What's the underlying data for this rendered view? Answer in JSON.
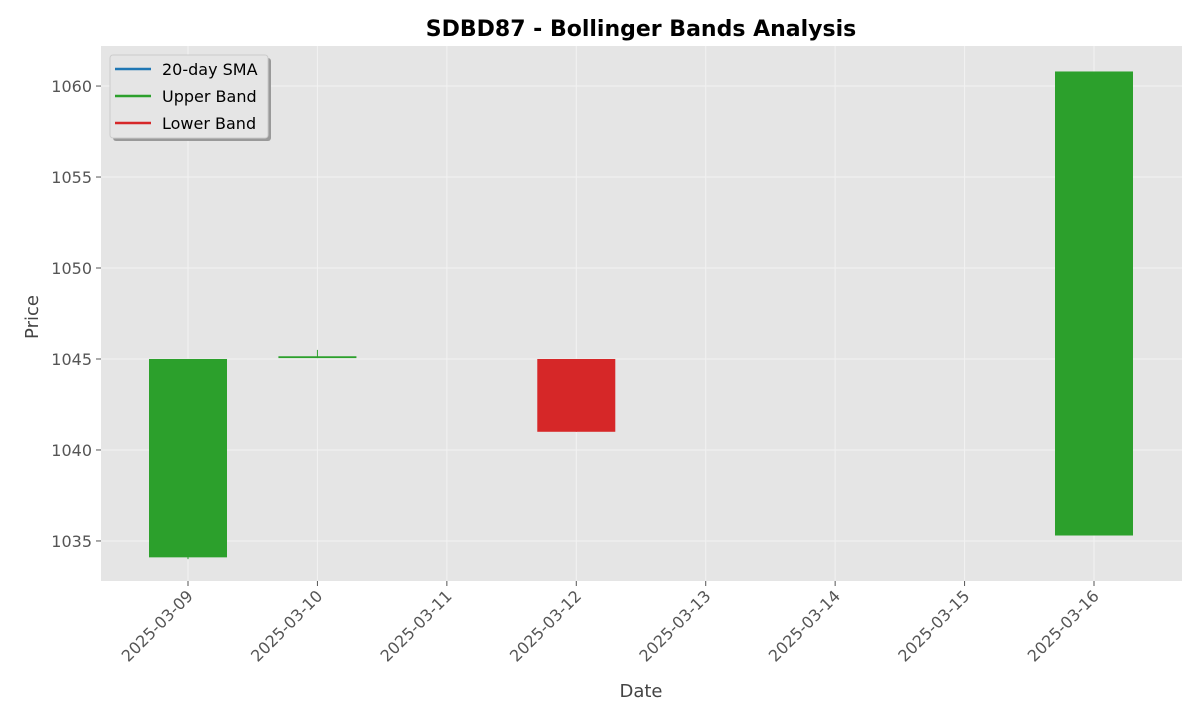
{
  "chart_data": {
    "type": "candlestick",
    "title": "SDBD87 - Bollinger Bands Analysis",
    "xlabel": "Date",
    "ylabel": "Price",
    "ylim": [
      1032.8,
      1062.2
    ],
    "yticks": [
      1035,
      1040,
      1045,
      1050,
      1055,
      1060
    ],
    "categories": [
      "2025-03-09",
      "2025-03-10",
      "2025-03-11",
      "2025-03-12",
      "2025-03-13",
      "2025-03-14",
      "2025-03-15",
      "2025-03-16"
    ],
    "candles": [
      {
        "date": "2025-03-09",
        "open": 1034.1,
        "close": 1045.0,
        "high": 1045.0,
        "low": 1034.0,
        "direction": "up"
      },
      {
        "date": "2025-03-10",
        "open": 1045.05,
        "close": 1045.15,
        "high": 1045.5,
        "low": 1045.05,
        "direction": "up"
      },
      {
        "date": "2025-03-12",
        "open": 1045.0,
        "close": 1041.0,
        "high": 1045.0,
        "low": 1041.0,
        "direction": "down"
      },
      {
        "date": "2025-03-16",
        "open": 1035.3,
        "close": 1060.8,
        "high": 1060.8,
        "low": 1035.3,
        "direction": "up"
      }
    ],
    "legend": [
      {
        "label": "20-day SMA",
        "color": "#1f77b4"
      },
      {
        "label": "Upper Band",
        "color": "#2ca02c"
      },
      {
        "label": "Lower Band",
        "color": "#d62728"
      }
    ],
    "legend_position": "top-left",
    "grid": true,
    "colors": {
      "up": "#2ca02c",
      "down": "#d62728",
      "plot_bg": "#e5e5e5",
      "grid": "#f2f2f2"
    }
  }
}
